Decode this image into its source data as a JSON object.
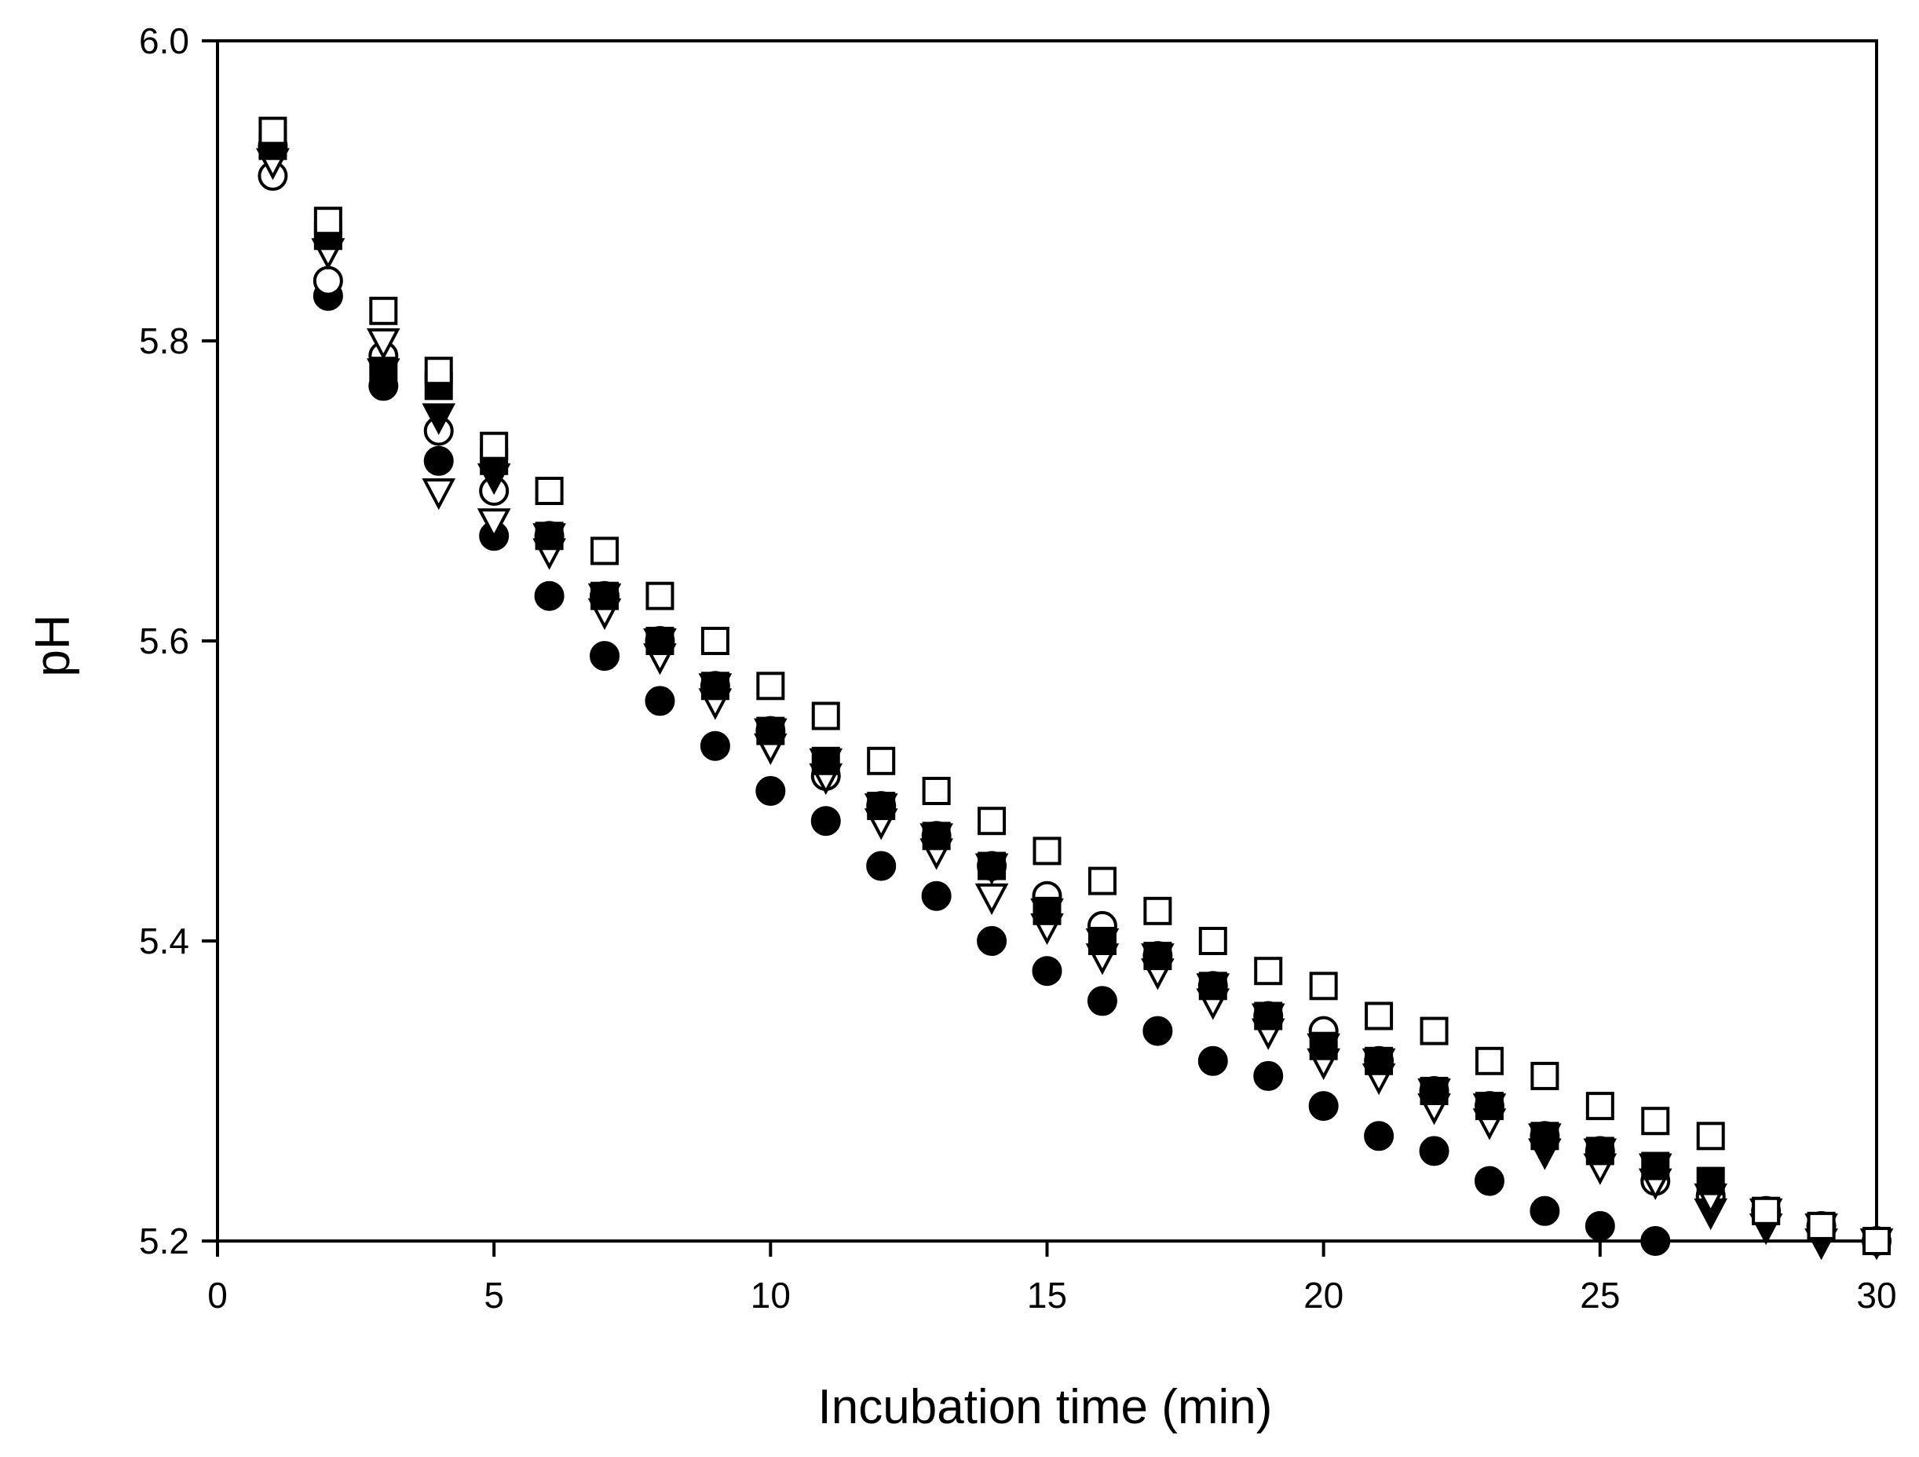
{
  "chart_data": {
    "type": "scatter",
    "title": "",
    "xlabel": "Incubation time (min)",
    "ylabel": "pH",
    "xlim": [
      0,
      30
    ],
    "ylim": [
      5.2,
      6.0
    ],
    "xticks": [
      "0",
      "5",
      "10",
      "15",
      "20",
      "25",
      "30"
    ],
    "yticks": [
      "5.2",
      "5.4",
      "5.6",
      "5.8",
      "6.0"
    ],
    "grid": false,
    "legend": "none",
    "series": [
      {
        "name": "filled-circle",
        "marker": "circle-filled",
        "x": [
          1,
          2,
          3,
          4,
          5,
          6,
          7,
          8,
          9,
          10,
          11,
          12,
          13,
          14,
          15,
          16,
          17,
          18,
          19,
          20,
          21,
          22,
          23,
          24,
          25,
          26
        ],
        "y": [
          5.93,
          5.83,
          5.77,
          5.72,
          5.67,
          5.63,
          5.59,
          5.56,
          5.53,
          5.5,
          5.48,
          5.45,
          5.43,
          5.4,
          5.38,
          5.36,
          5.34,
          5.32,
          5.31,
          5.29,
          5.27,
          5.26,
          5.24,
          5.22,
          5.21,
          5.2
        ]
      },
      {
        "name": "open-circle",
        "marker": "circle-open",
        "x": [
          1,
          2,
          3,
          4,
          5,
          6,
          7,
          8,
          9,
          10,
          11,
          12,
          13,
          14,
          15,
          16,
          17,
          18,
          19,
          20,
          21,
          22,
          23,
          24,
          25,
          26,
          27,
          28,
          29,
          30
        ],
        "y": [
          5.91,
          5.84,
          5.79,
          5.74,
          5.7,
          5.67,
          5.63,
          5.6,
          5.57,
          5.54,
          5.51,
          5.49,
          5.47,
          5.45,
          5.43,
          5.41,
          5.39,
          5.37,
          5.35,
          5.34,
          5.32,
          5.3,
          5.29,
          5.27,
          5.26,
          5.24,
          5.23,
          5.22,
          5.21,
          5.2
        ]
      },
      {
        "name": "filled-triangle",
        "marker": "triangle-down-filled",
        "x": [
          1,
          2,
          3,
          4,
          5,
          6,
          7,
          8,
          9,
          10,
          11,
          12,
          13,
          14,
          15,
          16,
          17,
          18,
          19,
          20,
          21,
          22,
          23,
          24,
          25,
          26,
          27,
          28,
          29,
          30
        ],
        "y": [
          5.92,
          5.86,
          5.78,
          5.75,
          5.71,
          5.67,
          5.63,
          5.6,
          5.57,
          5.54,
          5.52,
          5.49,
          5.47,
          5.45,
          5.42,
          5.4,
          5.39,
          5.37,
          5.35,
          5.33,
          5.32,
          5.3,
          5.29,
          5.26,
          5.26,
          5.25,
          5.22,
          5.21,
          5.2,
          5.2
        ]
      },
      {
        "name": "open-triangle",
        "marker": "triangle-down-open",
        "x": [
          1,
          2,
          3,
          4,
          5,
          6,
          7,
          8,
          9,
          10,
          11,
          12,
          13,
          14,
          15,
          16,
          17,
          18,
          19,
          20,
          21,
          22,
          23,
          24,
          25,
          26,
          27,
          28,
          29,
          30
        ],
        "y": [
          5.92,
          5.86,
          5.8,
          5.7,
          5.68,
          5.66,
          5.62,
          5.59,
          5.56,
          5.53,
          5.51,
          5.48,
          5.46,
          5.43,
          5.41,
          5.39,
          5.38,
          5.36,
          5.34,
          5.32,
          5.31,
          5.29,
          5.28,
          5.27,
          5.25,
          5.24,
          5.23,
          5.22,
          5.21,
          5.2
        ]
      },
      {
        "name": "filled-square",
        "marker": "square-filled",
        "x": [
          1,
          2,
          3,
          4,
          5,
          6,
          7,
          8,
          9,
          10,
          11,
          12,
          13,
          14,
          15,
          16,
          17,
          18,
          19,
          20,
          21,
          22,
          23,
          24,
          25,
          26,
          27,
          28,
          29,
          30
        ],
        "y": [
          5.93,
          5.87,
          5.78,
          5.77,
          5.72,
          5.67,
          5.63,
          5.6,
          5.57,
          5.54,
          5.52,
          5.49,
          5.47,
          5.45,
          5.42,
          5.4,
          5.39,
          5.37,
          5.35,
          5.33,
          5.32,
          5.3,
          5.29,
          5.27,
          5.26,
          5.25,
          5.24,
          5.22,
          5.21,
          5.2
        ]
      },
      {
        "name": "open-square",
        "marker": "square-open",
        "x": [
          1,
          2,
          3,
          4,
          5,
          6,
          7,
          8,
          9,
          10,
          11,
          12,
          13,
          14,
          15,
          16,
          17,
          18,
          19,
          20,
          21,
          22,
          23,
          24,
          25,
          26,
          27,
          28,
          29,
          30
        ],
        "y": [
          5.94,
          5.88,
          5.82,
          5.78,
          5.73,
          5.7,
          5.66,
          5.63,
          5.6,
          5.57,
          5.55,
          5.52,
          5.5,
          5.48,
          5.46,
          5.44,
          5.42,
          5.4,
          5.38,
          5.37,
          5.35,
          5.34,
          5.32,
          5.31,
          5.29,
          5.28,
          5.27,
          5.22,
          5.21,
          5.2
        ]
      }
    ]
  }
}
